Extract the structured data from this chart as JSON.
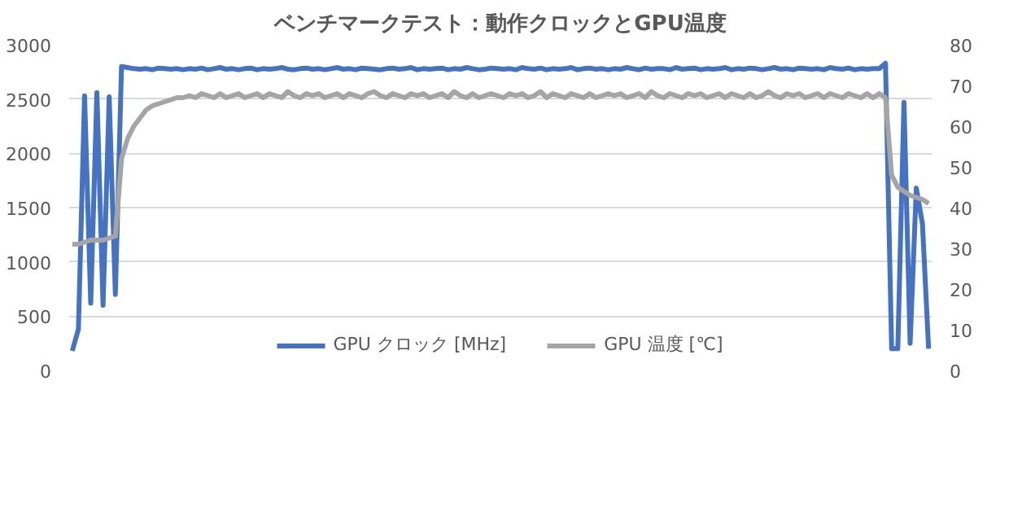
{
  "chart_data": {
    "type": "line",
    "title": "ベンチマークテスト：動作クロックとGPU温度",
    "categories": [
      null,
      null,
      null,
      null,
      null,
      null,
      null,
      null,
      null,
      null,
      null,
      null,
      null,
      null,
      null,
      null,
      null,
      null,
      null,
      null,
      null,
      null,
      null,
      null,
      null,
      null,
      null,
      null,
      null,
      null,
      null,
      null,
      null,
      null,
      null,
      null,
      null,
      null,
      null,
      null,
      null,
      null,
      null,
      null,
      null,
      null,
      null,
      null,
      null,
      null,
      null,
      null,
      null,
      null,
      null,
      null,
      null,
      null,
      null,
      null,
      null,
      null,
      null,
      null,
      null,
      null,
      null,
      null,
      null,
      null,
      null,
      null,
      null,
      null,
      null,
      null,
      null,
      null,
      null,
      null,
      null,
      null,
      null,
      null,
      null,
      null,
      null,
      null,
      null,
      null,
      null,
      null,
      null,
      null,
      null,
      null,
      null,
      null,
      null,
      null,
      null,
      null,
      null,
      null,
      null,
      null,
      null,
      null,
      null,
      null,
      null,
      null,
      null,
      null,
      null,
      null,
      null,
      null,
      null,
      null,
      null,
      null,
      null,
      null,
      null,
      null,
      null,
      null,
      null,
      null,
      null,
      null,
      null,
      null,
      null,
      null,
      null,
      null,
      null,
      null
    ],
    "series": [
      {
        "name": "GPU クロック [MHz]",
        "color": "#4472c4",
        "values": [
          180,
          380,
          2530,
          620,
          2560,
          600,
          2520,
          700,
          2800,
          2790,
          2780,
          2775,
          2780,
          2770,
          2785,
          2780,
          2775,
          2780,
          2770,
          2780,
          2775,
          2785,
          2770,
          2780,
          2790,
          2775,
          2780,
          2770,
          2780,
          2785,
          2770,
          2780,
          2775,
          2780,
          2790,
          2775,
          2770,
          2780,
          2785,
          2775,
          2780,
          2770,
          2780,
          2790,
          2775,
          2780,
          2770,
          2785,
          2780,
          2775,
          2770,
          2780,
          2785,
          2775,
          2780,
          2790,
          2770,
          2780,
          2775,
          2780,
          2785,
          2770,
          2780,
          2775,
          2790,
          2780,
          2770,
          2775,
          2785,
          2780,
          2775,
          2780,
          2770,
          2790,
          2780,
          2775,
          2785,
          2770,
          2780,
          2775,
          2780,
          2790,
          2770,
          2780,
          2785,
          2775,
          2780,
          2770,
          2780,
          2775,
          2790,
          2780,
          2770,
          2785,
          2775,
          2780,
          2780,
          2770,
          2790,
          2775,
          2780,
          2785,
          2770,
          2780,
          2775,
          2780,
          2790,
          2770,
          2780,
          2775,
          2785,
          2780,
          2770,
          2780,
          2790,
          2775,
          2780,
          2770,
          2785,
          2780,
          2775,
          2780,
          2770,
          2790,
          2780,
          2775,
          2785,
          2770,
          2780,
          2775,
          2780,
          2780,
          2830,
          200,
          200,
          2470,
          250,
          1680,
          1350,
          200
        ]
      },
      {
        "name": "GPU 温度 [℃]",
        "color": "#a5a5a5",
        "axis": "y2",
        "values": [
          31,
          31,
          31.5,
          32,
          32,
          32,
          32.5,
          33,
          52,
          57,
          60,
          62,
          64,
          65,
          65.5,
          66,
          66.5,
          67,
          67,
          67.5,
          67,
          68,
          67.5,
          67,
          68,
          67,
          67.5,
          68,
          67,
          67.5,
          68,
          67,
          68,
          67.5,
          67,
          68.5,
          67.5,
          67,
          68,
          67.5,
          68,
          67,
          67.5,
          68,
          67,
          68,
          67.5,
          67,
          68,
          68.5,
          67.5,
          67,
          68,
          67.5,
          67,
          68,
          67.5,
          68,
          67,
          67.5,
          68,
          67,
          68.5,
          67.5,
          67,
          68,
          67,
          67.5,
          68,
          67.5,
          67,
          68,
          67.5,
          68,
          67,
          67.5,
          68.5,
          67,
          68,
          67.5,
          67,
          68,
          67.5,
          67,
          68,
          67,
          67.5,
          68,
          67.5,
          68,
          67,
          67.5,
          68,
          67,
          68.5,
          67.5,
          67,
          68,
          67.5,
          67,
          68,
          67.5,
          68,
          67,
          67.5,
          68,
          67,
          68,
          67.5,
          67,
          68,
          67,
          67.5,
          68.5,
          67.5,
          67,
          68,
          67.5,
          68,
          67,
          67.5,
          68,
          67,
          68,
          67.5,
          67,
          68,
          67.5,
          67,
          68,
          67,
          68,
          67,
          48,
          45,
          44,
          43,
          42.5,
          42,
          41
        ]
      }
    ],
    "ylim": [
      0,
      3000
    ],
    "yticks": [
      0,
      500,
      1000,
      1500,
      2000,
      2500,
      3000
    ],
    "y2lim": [
      0,
      80
    ],
    "y2ticks": [
      0,
      10,
      20,
      30,
      40,
      50,
      60,
      70,
      80
    ],
    "grid": "y",
    "legend": "bottom",
    "tick_labels": "y"
  }
}
